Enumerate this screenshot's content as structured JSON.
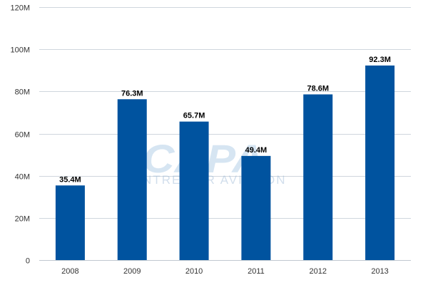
{
  "chart_data": {
    "type": "bar",
    "categories": [
      "2008",
      "2009",
      "2010",
      "2011",
      "2012",
      "2013"
    ],
    "values": [
      35.4,
      76.3,
      65.7,
      49.4,
      78.6,
      92.3
    ],
    "value_labels": [
      "35.4M",
      "76.3M",
      "65.7M",
      "49.4M",
      "78.6M",
      "92.3M"
    ],
    "yticks": [
      0,
      20,
      40,
      60,
      80,
      100,
      120
    ],
    "ytick_labels": [
      "0",
      "20M",
      "40M",
      "60M",
      "80M",
      "100M",
      "120M"
    ],
    "ylim": [
      0,
      120
    ],
    "grid": true,
    "legend": "none",
    "bar_color": "#00539f",
    "title": "",
    "xlabel": "",
    "ylabel": ""
  },
  "watermark": {
    "logo_text": "CAPA",
    "tagline": "CENTRE FOR AVIATION"
  }
}
